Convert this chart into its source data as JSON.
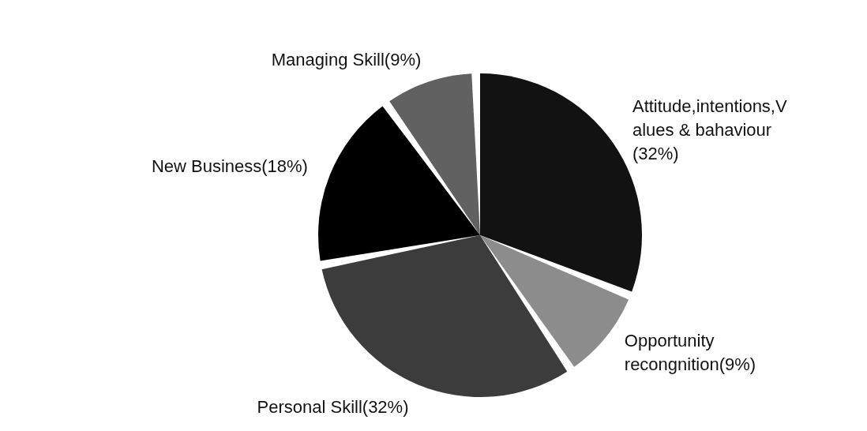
{
  "chart_data": {
    "type": "pie",
    "categories": [
      "Attitude,intentions,Values & bahaviour",
      "Opportunity recongnition",
      "Personal Skill",
      "New Business",
      "Managing Skill"
    ],
    "values": [
      32,
      9,
      32,
      18,
      9
    ],
    "value_labels": [
      "(32%)",
      "(9%)",
      "(32%)",
      "(18%)",
      "(9%)"
    ],
    "colors": [
      "#121212",
      "#8c8c8c",
      "#3c3c3c",
      "#000000",
      "#616161"
    ]
  }
}
